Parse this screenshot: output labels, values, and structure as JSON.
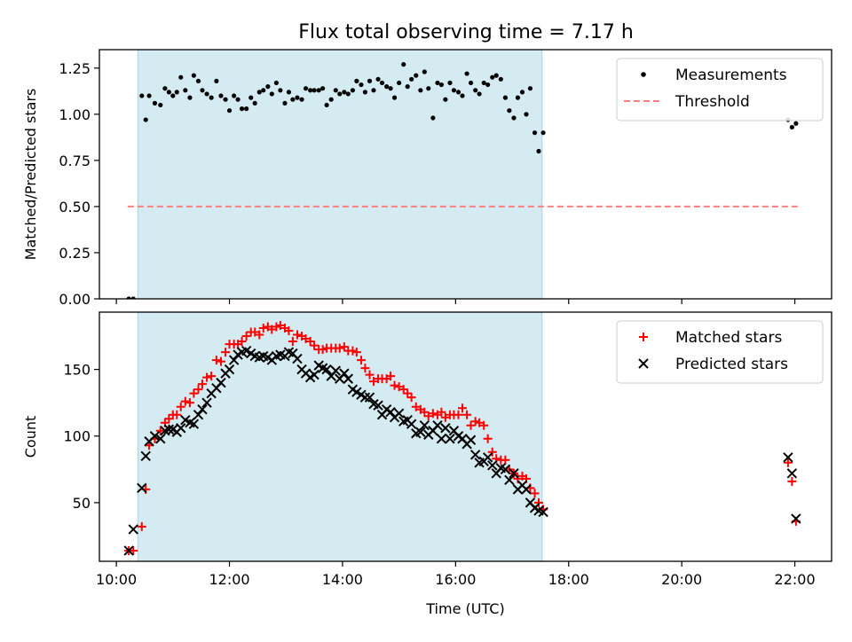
{
  "figure": {
    "title": "Flux total observing time = 7.17 h"
  },
  "chart_data": [
    {
      "type": "scatter",
      "panel": "top",
      "xlabel": "",
      "ylabel": "Matched/Predicted stars",
      "xlim_hours": [
        9.7,
        22.65
      ],
      "ylim": [
        0,
        1.35
      ],
      "yticks": [
        0.0,
        0.25,
        0.5,
        0.75,
        1.0,
        1.25
      ],
      "ytick_labels": [
        "0.00",
        "0.25",
        "0.50",
        "0.75",
        "1.00",
        "1.25"
      ],
      "xticks_hours": [
        10,
        12,
        14,
        16,
        18,
        20,
        22
      ],
      "shaded_span_hours": [
        10.38,
        17.53
      ],
      "shade_color": "#d4ebf1",
      "grid": false,
      "legend_position": "top-right",
      "legend": [
        {
          "label": "Measurements",
          "marker": "dot",
          "color": "#000000"
        },
        {
          "label": "Threshold",
          "marker": "dashed-line",
          "color": "#ff7f7f"
        }
      ],
      "threshold": {
        "y": 0.5,
        "x_start_hours": 10.2,
        "x_end_hours": 22.05,
        "color": "#ff7f7f"
      },
      "series": [
        {
          "name": "Measurements",
          "color": "#000000",
          "x_hours": [
            10.22,
            10.3,
            10.45,
            10.52,
            10.58,
            10.68,
            10.78,
            10.86,
            10.93,
            11.0,
            11.07,
            11.14,
            11.22,
            11.3,
            11.37,
            11.45,
            11.52,
            11.6,
            11.68,
            11.77,
            11.85,
            11.93,
            12.0,
            12.08,
            12.15,
            12.22,
            12.3,
            12.38,
            12.45,
            12.53,
            12.6,
            12.68,
            12.75,
            12.83,
            12.9,
            12.98,
            13.05,
            13.12,
            13.2,
            13.28,
            13.35,
            13.43,
            13.5,
            13.58,
            13.65,
            13.72,
            13.8,
            13.88,
            13.95,
            14.03,
            14.1,
            14.18,
            14.25,
            14.33,
            14.4,
            14.48,
            14.55,
            14.63,
            14.7,
            14.78,
            14.85,
            14.92,
            15.0,
            15.08,
            15.15,
            15.22,
            15.3,
            15.38,
            15.45,
            15.52,
            15.6,
            15.68,
            15.75,
            15.82,
            15.9,
            15.97,
            16.05,
            16.12,
            16.2,
            16.27,
            16.35,
            16.42,
            16.5,
            16.57,
            16.65,
            16.72,
            16.8,
            16.88,
            16.95,
            17.03,
            17.1,
            17.18,
            17.25,
            17.32,
            17.4,
            17.47,
            17.55,
            21.88,
            21.95,
            22.02
          ],
          "y": [
            0.0,
            0.0,
            1.1,
            0.97,
            1.1,
            1.06,
            1.05,
            1.14,
            1.12,
            1.1,
            1.12,
            1.2,
            1.13,
            1.09,
            1.21,
            1.18,
            1.13,
            1.11,
            1.09,
            1.18,
            1.1,
            1.08,
            1.02,
            1.1,
            1.08,
            1.03,
            1.03,
            1.09,
            1.06,
            1.12,
            1.13,
            1.15,
            1.11,
            1.17,
            1.13,
            1.06,
            1.12,
            1.08,
            1.09,
            1.08,
            1.14,
            1.13,
            1.13,
            1.13,
            1.14,
            1.05,
            1.08,
            1.13,
            1.11,
            1.12,
            1.11,
            1.13,
            1.18,
            1.16,
            1.12,
            1.18,
            1.13,
            1.19,
            1.17,
            1.15,
            1.14,
            1.09,
            1.17,
            1.27,
            1.15,
            1.19,
            1.21,
            1.13,
            1.23,
            1.14,
            0.98,
            1.17,
            1.16,
            1.08,
            1.17,
            1.13,
            1.12,
            1.1,
            1.22,
            1.17,
            1.13,
            1.11,
            1.17,
            1.16,
            1.2,
            1.21,
            1.19,
            1.09,
            1.02,
            0.98,
            1.09,
            1.12,
            1.0,
            1.14,
            0.9,
            0.8,
            0.9,
            0.97,
            0.93,
            0.95
          ]
        }
      ]
    },
    {
      "type": "scatter",
      "panel": "bottom",
      "xlabel": "Time (UTC)",
      "ylabel": "Count",
      "xlim_hours": [
        9.7,
        22.65
      ],
      "ylim": [
        6,
        193
      ],
      "yticks": [
        50,
        100,
        150
      ],
      "ytick_labels": [
        "50",
        "100",
        "150"
      ],
      "xticks_hours": [
        10,
        12,
        14,
        16,
        18,
        20,
        22
      ],
      "xtick_labels": [
        "10:00",
        "12:00",
        "14:00",
        "16:00",
        "18:00",
        "20:00",
        "22:00"
      ],
      "shaded_span_hours": [
        10.38,
        17.53
      ],
      "shade_color": "#d4ebf1",
      "grid": false,
      "legend_position": "top-right",
      "legend": [
        {
          "label": "Matched stars",
          "marker": "plus",
          "color": "#ff0000"
        },
        {
          "label": "Predicted stars",
          "marker": "x",
          "color": "#000000"
        }
      ],
      "series": [
        {
          "name": "Matched stars",
          "marker": "plus",
          "color": "#ff0000",
          "x_hours": [
            10.22,
            10.3,
            10.45,
            10.52,
            10.58,
            10.68,
            10.78,
            10.86,
            10.93,
            11.0,
            11.07,
            11.14,
            11.22,
            11.3,
            11.37,
            11.45,
            11.52,
            11.6,
            11.68,
            11.77,
            11.85,
            11.93,
            12.0,
            12.08,
            12.15,
            12.22,
            12.3,
            12.38,
            12.45,
            12.53,
            12.6,
            12.68,
            12.75,
            12.83,
            12.9,
            12.98,
            13.05,
            13.12,
            13.2,
            13.28,
            13.35,
            13.43,
            13.5,
            13.58,
            13.65,
            13.72,
            13.8,
            13.88,
            13.95,
            14.03,
            14.1,
            14.18,
            14.25,
            14.33,
            14.4,
            14.48,
            14.55,
            14.63,
            14.7,
            14.78,
            14.85,
            14.92,
            15.0,
            15.08,
            15.15,
            15.22,
            15.3,
            15.38,
            15.45,
            15.52,
            15.6,
            15.68,
            15.75,
            15.82,
            15.9,
            15.97,
            16.05,
            16.12,
            16.2,
            16.27,
            16.35,
            16.42,
            16.5,
            16.57,
            16.65,
            16.72,
            16.8,
            16.88,
            16.95,
            17.03,
            17.1,
            17.18,
            17.25,
            17.32,
            17.4,
            17.47,
            17.55,
            21.88,
            21.95,
            22.02
          ],
          "y": [
            14,
            14,
            32,
            60,
            93,
            98,
            104,
            110,
            113,
            116,
            116,
            122,
            126,
            125,
            132,
            135,
            139,
            144,
            145,
            157,
            156,
            163,
            169,
            169,
            169,
            171,
            175,
            178,
            178,
            176,
            181,
            182,
            180,
            182,
            183,
            181,
            179,
            171,
            176,
            175,
            173,
            171,
            168,
            165,
            165,
            166,
            166,
            166,
            166,
            167,
            164,
            164,
            163,
            157,
            151,
            146,
            141,
            143,
            143,
            143,
            145,
            138,
            137,
            135,
            132,
            129,
            122,
            120,
            118,
            115,
            117,
            116,
            118,
            114,
            116,
            116,
            116,
            121,
            116,
            108,
            111,
            110,
            108,
            98,
            88,
            83,
            82,
            82,
            75,
            72,
            68,
            70,
            68,
            61,
            57,
            50,
            45,
            80,
            66,
            36
          ]
        },
        {
          "name": "Predicted stars",
          "marker": "x",
          "color": "#000000",
          "x_hours": [
            10.22,
            10.3,
            10.45,
            10.52,
            10.58,
            10.68,
            10.78,
            10.86,
            10.93,
            11.0,
            11.07,
            11.14,
            11.22,
            11.3,
            11.37,
            11.45,
            11.52,
            11.6,
            11.68,
            11.77,
            11.85,
            11.93,
            12.0,
            12.08,
            12.15,
            12.22,
            12.3,
            12.38,
            12.45,
            12.53,
            12.6,
            12.68,
            12.75,
            12.83,
            12.9,
            12.98,
            13.05,
            13.12,
            13.2,
            13.28,
            13.35,
            13.43,
            13.5,
            13.58,
            13.65,
            13.72,
            13.8,
            13.88,
            13.95,
            14.03,
            14.1,
            14.18,
            14.25,
            14.33,
            14.4,
            14.48,
            14.55,
            14.63,
            14.7,
            14.78,
            14.85,
            14.92,
            15.0,
            15.08,
            15.15,
            15.22,
            15.3,
            15.38,
            15.45,
            15.52,
            15.6,
            15.68,
            15.75,
            15.82,
            15.9,
            15.97,
            16.05,
            16.12,
            16.2,
            16.27,
            16.35,
            16.42,
            16.5,
            16.57,
            16.65,
            16.72,
            16.8,
            16.88,
            16.95,
            17.03,
            17.1,
            17.18,
            17.25,
            17.32,
            17.4,
            17.47,
            17.55,
            21.88,
            21.95,
            22.02
          ],
          "y": [
            14,
            30,
            61,
            85,
            96,
            100,
            98,
            104,
            105,
            105,
            103,
            106,
            112,
            110,
            109,
            116,
            120,
            125,
            132,
            136,
            140,
            147,
            150,
            157,
            161,
            163,
            164,
            162,
            160,
            159,
            160,
            159,
            157,
            160,
            161,
            160,
            163,
            162,
            158,
            150,
            147,
            144,
            146,
            153,
            151,
            150,
            145,
            149,
            143,
            147,
            143,
            135,
            133,
            131,
            129,
            129,
            124,
            123,
            116,
            120,
            118,
            114,
            117,
            111,
            112,
            109,
            102,
            103,
            108,
            101,
            104,
            108,
            98,
            106,
            98,
            104,
            100,
            98,
            94,
            97,
            86,
            80,
            81,
            84,
            78,
            72,
            76,
            75,
            67,
            72,
            60,
            63,
            60,
            50,
            46,
            44,
            43,
            84,
            72,
            38
          ]
        }
      ]
    }
  ]
}
